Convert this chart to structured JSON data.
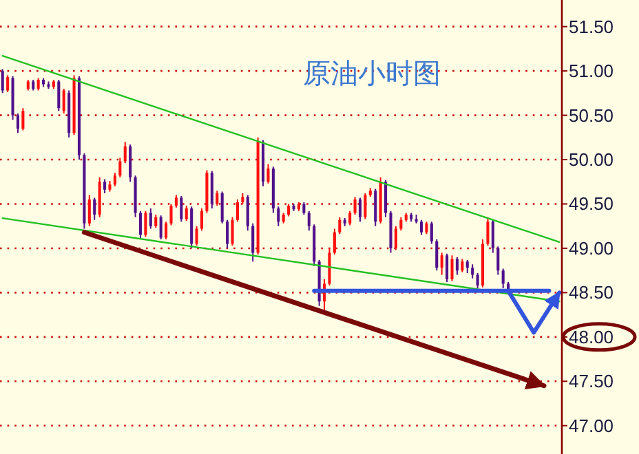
{
  "chart_data": {
    "type": "candlestick",
    "title": "原油小时图",
    "categories": [
      null,
      null,
      null,
      null,
      null,
      null,
      null,
      null,
      null,
      null,
      null,
      null,
      null,
      null,
      null,
      null,
      null,
      null,
      null,
      null,
      null,
      null,
      null,
      null,
      null,
      null,
      null,
      null,
      null,
      null,
      null,
      null,
      null,
      null,
      null,
      null,
      null,
      null,
      null,
      null,
      null,
      null,
      null,
      null,
      null,
      null,
      null,
      null,
      null,
      null,
      null,
      null,
      null,
      null,
      null,
      null,
      null,
      null,
      null,
      null,
      null,
      null,
      null,
      null,
      null,
      null,
      null,
      null,
      null,
      null,
      null,
      null,
      null,
      null,
      null,
      null,
      null,
      null,
      null,
      null,
      null,
      null,
      null,
      null,
      null,
      null,
      null,
      null,
      null,
      null,
      null,
      null,
      null,
      null,
      null,
      null,
      null,
      null,
      null,
      null,
      null,
      null,
      null,
      null,
      null,
      null,
      null,
      null,
      null,
      null
    ],
    "ylim": [
      46.68,
      51.8
    ],
    "yticks": [
      {
        "value": 47,
        "label": "47.00"
      },
      {
        "value": 47.5,
        "label": "47.50"
      },
      {
        "value": 48,
        "label": "48.00"
      },
      {
        "value": 48.5,
        "label": "48.50"
      },
      {
        "value": 49,
        "label": "49.00"
      },
      {
        "value": 49.5,
        "label": "49.50"
      },
      {
        "value": 50,
        "label": "50.00"
      },
      {
        "value": 50.5,
        "label": "50.50"
      },
      {
        "value": 51,
        "label": "51.00"
      },
      {
        "value": 51.5,
        "label": "51.50"
      }
    ],
    "tick_labels": "y",
    "grid": "y",
    "colors": [
      "#50108c",
      "#ff1010",
      "#50108c",
      "#50108c",
      "#ff1010",
      "#ff1010",
      "#50108c",
      "#ff1010",
      "#50108c",
      "#50108c",
      "#ff1010",
      "#50108c",
      "#ff1010",
      "#50108c",
      "#ff1010",
      "#50108c",
      "#50108c",
      "#ff1010",
      "#50108c",
      "#ff1010",
      "#50108c",
      "#ff1010",
      "#ff1010",
      "#ff1010",
      "#ff1010",
      "#50108c",
      "#50108c",
      "#50108c",
      "#ff1010",
      "#50108c",
      "#ff1010",
      "#50108c",
      "#ff1010",
      "#ff1010",
      "#ff1010",
      "#50108c",
      "#ff1010",
      "#50108c",
      "#ff1010",
      "#ff1010",
      "#ff1010",
      "#50108c",
      "#ff1010",
      "#50108c",
      "#50108c",
      "#ff1010",
      "#ff1010",
      "#ff1010",
      "#50108c",
      "#50108c",
      "#ff1010",
      "#50108c",
      "#ff1010",
      "#50108c",
      "#50108c",
      "#ff1010",
      "#ff1010",
      "#50108c",
      "#ff1010",
      "#50108c",
      "#50108c",
      "#50108c",
      "#50108c",
      "#ff1010",
      "#ff1010",
      "#ff1010",
      "#ff1010",
      "#50108c",
      "#ff1010",
      "#ff1010",
      "#50108c",
      "#ff1010",
      "#ff1010",
      "#50108c",
      "#ff1010",
      "#50108c",
      "#50108c",
      "#ff1010",
      "#ff1010",
      "#ff1010",
      "#50108c",
      "#50108c",
      "#50108c",
      "#ff1010",
      "#50108c",
      "#50108c",
      "#ff1010",
      "#50108c",
      "#ff1010",
      "#50108c",
      "#ff1010",
      "#50108c",
      "#50108c",
      "#50108c",
      "#ff1010",
      "#ff1010",
      "#50108c",
      "#50108c",
      "#50108c",
      "#50108c",
      null,
      null,
      null,
      null,
      null,
      null,
      null,
      null,
      null,
      null
    ],
    "ohlc": [
      [
        51.0,
        51.02,
        50.75,
        50.78
      ],
      [
        50.78,
        50.95,
        50.76,
        50.93
      ],
      [
        50.92,
        50.94,
        50.45,
        50.5
      ],
      [
        50.5,
        50.52,
        50.3,
        50.35
      ],
      [
        50.35,
        50.58,
        50.33,
        50.55
      ],
      [
        50.8,
        50.9,
        50.78,
        50.88
      ],
      [
        50.88,
        50.9,
        50.78,
        50.8
      ],
      [
        50.8,
        50.92,
        50.78,
        50.9
      ],
      [
        50.9,
        50.92,
        50.82,
        50.85
      ],
      [
        50.85,
        50.88,
        50.8,
        50.82
      ],
      [
        50.82,
        50.9,
        50.8,
        50.88
      ],
      [
        50.88,
        50.9,
        50.55,
        50.58
      ],
      [
        50.55,
        50.8,
        50.52,
        50.78
      ],
      [
        50.75,
        50.78,
        50.25,
        50.3
      ],
      [
        50.3,
        50.95,
        50.28,
        50.92
      ],
      [
        50.92,
        50.94,
        50.0,
        50.05
      ],
      [
        50.05,
        50.07,
        49.22,
        49.28
      ],
      [
        49.28,
        49.6,
        49.25,
        49.55
      ],
      [
        49.55,
        49.57,
        49.32,
        49.38
      ],
      [
        49.38,
        49.8,
        49.35,
        49.75
      ],
      [
        49.75,
        49.78,
        49.62,
        49.66
      ],
      [
        49.66,
        49.76,
        49.64,
        49.72
      ],
      [
        49.72,
        49.85,
        49.7,
        49.82
      ],
      [
        49.82,
        50.02,
        49.8,
        49.98
      ],
      [
        49.98,
        50.2,
        49.96,
        50.15
      ],
      [
        50.15,
        50.17,
        49.75,
        49.8
      ],
      [
        49.8,
        49.82,
        49.35,
        49.4
      ],
      [
        49.4,
        49.42,
        49.1,
        49.15
      ],
      [
        49.15,
        49.42,
        49.13,
        49.4
      ],
      [
        49.4,
        49.45,
        49.22,
        49.25
      ],
      [
        49.25,
        49.38,
        49.23,
        49.35
      ],
      [
        49.35,
        49.37,
        49.1,
        49.12
      ],
      [
        49.12,
        49.3,
        49.1,
        49.28
      ],
      [
        49.28,
        49.5,
        49.26,
        49.48
      ],
      [
        49.48,
        49.6,
        49.46,
        49.57
      ],
      [
        49.57,
        49.59,
        49.3,
        49.33
      ],
      [
        49.33,
        49.48,
        49.31,
        49.45
      ],
      [
        49.45,
        49.47,
        49.0,
        49.05
      ],
      [
        49.05,
        49.25,
        49.03,
        49.22
      ],
      [
        49.22,
        49.45,
        49.2,
        49.42
      ],
      [
        49.42,
        49.88,
        49.4,
        49.85
      ],
      [
        49.85,
        49.87,
        49.45,
        49.5
      ],
      [
        49.5,
        49.65,
        49.48,
        49.62
      ],
      [
        49.62,
        49.64,
        49.28,
        49.3
      ],
      [
        49.3,
        49.32,
        49.0,
        49.05
      ],
      [
        49.05,
        49.35,
        49.03,
        49.32
      ],
      [
        49.32,
        49.55,
        49.3,
        49.52
      ],
      [
        49.52,
        49.62,
        49.5,
        49.58
      ],
      [
        49.58,
        49.6,
        49.2,
        49.25
      ],
      [
        49.25,
        49.28,
        48.85,
        48.95
      ],
      [
        48.95,
        50.25,
        48.93,
        50.2
      ],
      [
        50.2,
        50.22,
        49.7,
        49.75
      ],
      [
        49.75,
        49.95,
        49.73,
        49.9
      ],
      [
        49.9,
        49.92,
        49.4,
        49.45
      ],
      [
        49.45,
        49.47,
        49.25,
        49.3
      ],
      [
        49.3,
        49.4,
        49.28,
        49.38
      ],
      [
        49.38,
        49.5,
        49.36,
        49.48
      ],
      [
        49.48,
        49.5,
        49.42,
        49.44
      ],
      [
        49.44,
        49.52,
        49.42,
        49.5
      ],
      [
        49.5,
        49.52,
        49.38,
        49.4
      ],
      [
        49.4,
        49.42,
        49.2,
        49.25
      ],
      [
        49.25,
        49.27,
        48.8,
        48.85
      ],
      [
        48.85,
        48.87,
        48.35,
        48.4
      ],
      [
        48.4,
        48.65,
        48.28,
        48.6
      ],
      [
        48.6,
        49.0,
        48.58,
        48.95
      ],
      [
        48.95,
        49.22,
        48.93,
        49.18
      ],
      [
        49.18,
        49.35,
        49.16,
        49.32
      ],
      [
        49.32,
        49.34,
        49.25,
        49.28
      ],
      [
        49.28,
        49.42,
        49.26,
        49.4
      ],
      [
        49.4,
        49.58,
        49.38,
        49.55
      ],
      [
        49.55,
        49.57,
        49.3,
        49.35
      ],
      [
        49.35,
        49.62,
        49.33,
        49.6
      ],
      [
        49.6,
        49.68,
        49.58,
        49.65
      ],
      [
        49.65,
        49.67,
        49.25,
        49.3
      ],
      [
        49.3,
        49.8,
        49.28,
        49.75
      ],
      [
        49.75,
        49.77,
        49.35,
        49.4
      ],
      [
        49.4,
        49.42,
        48.95,
        49.0
      ],
      [
        49.0,
        49.25,
        48.98,
        49.22
      ],
      [
        49.22,
        49.35,
        49.2,
        49.32
      ],
      [
        49.32,
        49.4,
        49.3,
        49.38
      ],
      [
        49.38,
        49.4,
        49.3,
        49.33
      ],
      [
        49.33,
        49.38,
        49.28,
        49.3
      ],
      [
        49.3,
        49.32,
        49.15,
        49.18
      ],
      [
        49.18,
        49.3,
        49.16,
        49.28
      ],
      [
        49.28,
        49.3,
        49.05,
        49.08
      ],
      [
        49.08,
        49.1,
        48.75,
        48.78
      ],
      [
        48.78,
        48.95,
        48.7,
        48.92
      ],
      [
        48.92,
        48.94,
        48.62,
        48.65
      ],
      [
        48.65,
        48.92,
        48.63,
        48.88
      ],
      [
        48.88,
        48.9,
        48.7,
        48.75
      ],
      [
        48.75,
        48.88,
        48.73,
        48.85
      ],
      [
        48.85,
        48.87,
        48.72,
        48.78
      ],
      [
        48.78,
        48.82,
        48.66,
        48.7
      ],
      [
        48.7,
        48.72,
        48.55,
        48.58
      ],
      [
        48.58,
        49.1,
        48.56,
        49.05
      ],
      [
        49.05,
        49.35,
        49.03,
        49.3
      ],
      [
        49.3,
        49.32,
        48.95,
        49.0
      ],
      [
        49.0,
        49.02,
        48.7,
        48.75
      ],
      [
        48.75,
        48.77,
        48.55,
        48.6
      ],
      [
        48.6,
        48.62,
        48.5,
        48.52
      ],
      null,
      null,
      null,
      null,
      null,
      null,
      null,
      null,
      null,
      null
    ],
    "series": [
      {
        "type": "line",
        "color": "#22c022",
        "values": [
          51.17,
          null,
          null,
          null,
          null,
          null,
          null,
          null,
          null,
          null,
          null,
          null,
          null,
          null,
          null,
          null,
          null,
          null,
          null,
          null,
          null,
          null,
          null,
          null,
          null,
          null,
          null,
          null,
          null,
          null,
          null,
          null,
          null,
          null,
          null,
          null,
          null,
          null,
          null,
          null,
          null,
          null,
          null,
          null,
          null,
          null,
          null,
          null,
          null,
          null,
          null,
          null,
          null,
          null,
          null,
          null,
          null,
          null,
          null,
          null,
          null,
          null,
          null,
          null,
          null,
          null,
          null,
          null,
          null,
          null,
          null,
          null,
          null,
          null,
          null,
          null,
          null,
          null,
          null,
          null,
          null,
          null,
          null,
          null,
          null,
          null,
          null,
          null,
          null,
          null,
          null,
          null,
          null,
          null,
          null,
          null,
          null,
          null,
          null,
          null,
          null,
          null,
          null,
          null,
          null,
          null,
          null,
          null,
          null,
          49.07
        ]
      },
      {
        "type": "line",
        "color": "#22c022",
        "values": [
          49.34,
          null,
          null,
          null,
          null,
          null,
          null,
          null,
          null,
          null,
          null,
          null,
          null,
          null,
          null,
          null,
          null,
          null,
          null,
          null,
          null,
          null,
          null,
          null,
          null,
          null,
          null,
          null,
          null,
          null,
          null,
          null,
          null,
          null,
          null,
          null,
          null,
          null,
          null,
          null,
          null,
          null,
          null,
          null,
          null,
          null,
          null,
          null,
          null,
          null,
          null,
          null,
          null,
          null,
          null,
          null,
          null,
          null,
          null,
          null,
          null,
          null,
          null,
          null,
          null,
          null,
          null,
          null,
          null,
          null,
          null,
          null,
          null,
          null,
          null,
          null,
          null,
          null,
          null,
          null,
          null,
          null,
          null,
          null,
          null,
          null,
          null,
          null,
          null,
          null,
          null,
          null,
          null,
          null,
          null,
          null,
          null,
          null,
          null,
          null,
          null,
          null,
          null,
          null,
          null,
          null,
          null,
          null,
          null,
          48.4
        ]
      },
      {
        "type": "line",
        "color": "#7a0a0a",
        "values": [
          null,
          null,
          null,
          null,
          null,
          null,
          null,
          null,
          null,
          null,
          null,
          null,
          null,
          null,
          null,
          null,
          49.18,
          null,
          null,
          null,
          null,
          null,
          null,
          null,
          null,
          null,
          null,
          null,
          null,
          null,
          null,
          null,
          null,
          null,
          null,
          null,
          null,
          null,
          null,
          null,
          null,
          null,
          null,
          null,
          null,
          null,
          null,
          null,
          null,
          null,
          null,
          null,
          null,
          null,
          null,
          null,
          null,
          null,
          null,
          null,
          null,
          null,
          null,
          null,
          null,
          null,
          null,
          null,
          null,
          null,
          null,
          null,
          null,
          null,
          null,
          null,
          null,
          null,
          null,
          null,
          null,
          null,
          null,
          null,
          null,
          null,
          null,
          null,
          null,
          null,
          null,
          null,
          null,
          null,
          null,
          null,
          null,
          null,
          null,
          null,
          null,
          null,
          null,
          null,
          null,
          null,
          47.45,
          null,
          null,
          null
        ]
      },
      {
        "type": "line",
        "color": "#3355dd",
        "values": [
          null,
          null,
          null,
          null,
          null,
          null,
          null,
          null,
          null,
          null,
          null,
          null,
          null,
          null,
          null,
          null,
          null,
          null,
          null,
          null,
          null,
          null,
          null,
          null,
          null,
          null,
          null,
          null,
          null,
          null,
          null,
          null,
          null,
          null,
          null,
          null,
          null,
          null,
          null,
          null,
          null,
          null,
          null,
          null,
          null,
          null,
          null,
          null,
          null,
          null,
          null,
          null,
          null,
          null,
          null,
          null,
          null,
          null,
          null,
          null,
          null,
          48.52,
          null,
          null,
          null,
          null,
          null,
          null,
          null,
          null,
          null,
          null,
          null,
          null,
          null,
          null,
          null,
          null,
          null,
          null,
          null,
          null,
          null,
          null,
          null,
          null,
          null,
          null,
          null,
          null,
          null,
          null,
          null,
          null,
          null,
          null,
          null,
          null,
          null,
          null,
          null,
          null,
          null,
          null,
          null,
          null,
          null,
          48.52,
          null,
          null
        ]
      },
      {
        "type": "line",
        "color": "#3355dd",
        "values": [
          null,
          null,
          null,
          null,
          null,
          null,
          null,
          null,
          null,
          null,
          null,
          null,
          null,
          null,
          null,
          null,
          null,
          null,
          null,
          null,
          null,
          null,
          null,
          null,
          null,
          null,
          null,
          null,
          null,
          null,
          null,
          null,
          null,
          null,
          null,
          null,
          null,
          null,
          null,
          null,
          null,
          null,
          null,
          null,
          null,
          null,
          null,
          null,
          null,
          null,
          null,
          null,
          null,
          null,
          null,
          null,
          null,
          null,
          null,
          null,
          null,
          null,
          null,
          null,
          null,
          null,
          null,
          null,
          null,
          null,
          null,
          null,
          null,
          null,
          null,
          null,
          null,
          null,
          null,
          null,
          null,
          null,
          null,
          null,
          null,
          null,
          null,
          null,
          null,
          null,
          null,
          null,
          null,
          null,
          null,
          null,
          null,
          null,
          null,
          48.52,
          null,
          null,
          null,
          null,
          48.05,
          null,
          null,
          null,
          null,
          48.5
        ]
      }
    ]
  }
}
